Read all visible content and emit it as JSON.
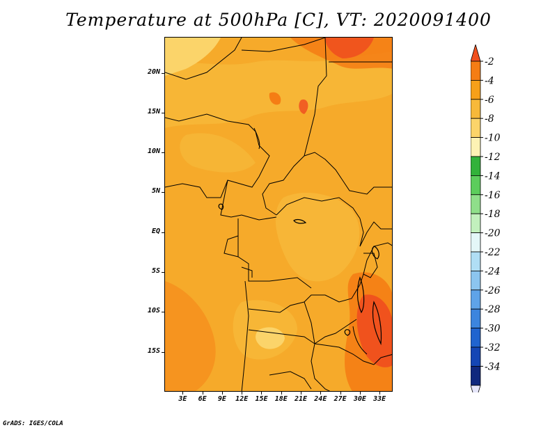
{
  "title": "Temperature at 500hPa [C], VT: 2020091400",
  "credit": "GrADS: IGES/COLA",
  "map": {
    "lat_labels": [
      "20N",
      "15N",
      "10N",
      "5N",
      "EQ",
      "5S",
      "10S",
      "15S"
    ],
    "lat_values": [
      20,
      15,
      10,
      5,
      0,
      -5,
      -10,
      -15
    ],
    "lon_labels": [
      "3E",
      "6E",
      "9E",
      "12E",
      "15E",
      "18E",
      "21E",
      "24E",
      "27E",
      "30E",
      "33E"
    ],
    "lon_values": [
      3,
      6,
      9,
      12,
      15,
      18,
      21,
      24,
      27,
      30,
      33
    ],
    "lat_range": [
      -20,
      24.5
    ],
    "lon_range": [
      0.2,
      35
    ]
  },
  "colorbar": {
    "levels": [
      "-2",
      "-4",
      "-6",
      "-8",
      "-10",
      "-12",
      "-14",
      "-16",
      "-18",
      "-20",
      "-22",
      "-24",
      "-26",
      "-28",
      "-30",
      "-32",
      "-34"
    ],
    "colors": [
      "#f0501e",
      "#f57d14",
      "#f6a019",
      "#f7b93a",
      "#fbd46a",
      "#fdf2b4",
      "#32b23a",
      "#5ccd5c",
      "#8fdf8a",
      "#c2f0bd",
      "#e4f7f8",
      "#b0def5",
      "#8cc5ef",
      "#5fa3e8",
      "#3c85de",
      "#2064cf",
      "#1446b5",
      "#10287e"
    ],
    "top_color": "#f0501e",
    "bottom_color": "#e6e6fa"
  },
  "colors": {
    "dominant": "#f6aa2a",
    "warm": "#f57d14",
    "warmest": "#ef4a1f",
    "cool": "#f8c24c",
    "coolest": "#fde49a",
    "border": "#000000"
  }
}
